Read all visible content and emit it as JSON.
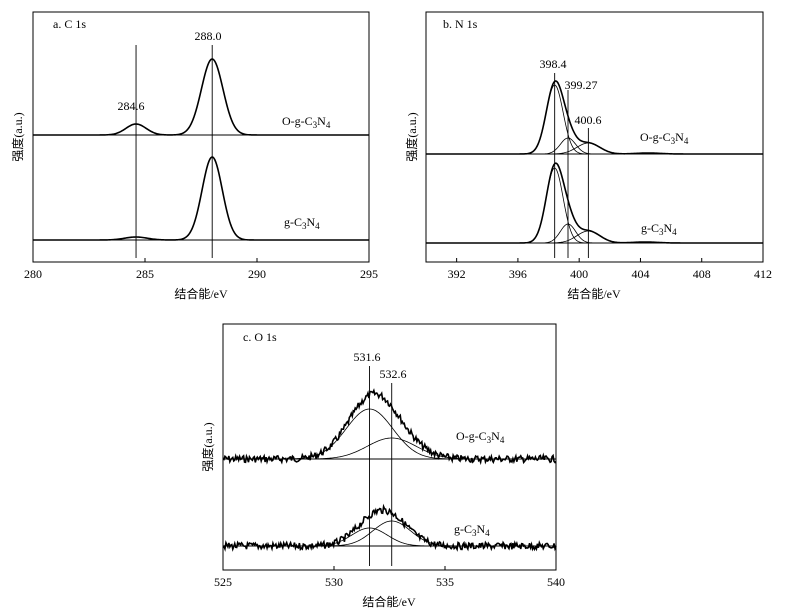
{
  "chart_data": [
    {
      "id": "panel-a",
      "type": "line",
      "title": "a. C 1s",
      "xlabel": "结合能/eV",
      "ylabel": "强度(a.u.)",
      "xlim": [
        280,
        295
      ],
      "xticks": [
        280,
        285,
        290,
        295
      ],
      "peak_markers": [
        {
          "x": 284.6,
          "label": "284.6"
        },
        {
          "x": 288.0,
          "label": "288.0"
        }
      ],
      "series": [
        {
          "name": "O-g-C3N4",
          "label_main": "O-g-C",
          "label_sub1": "3",
          "label_mid": "N",
          "label_sub2": "4",
          "baseline": 0.13,
          "peaks": [
            {
              "center": 284.6,
              "height": 0.11,
              "width": 0.45
            },
            {
              "center": 288.0,
              "height": 0.76,
              "width": 0.48
            }
          ]
        },
        {
          "name": "g-C3N4",
          "label_main": "g-C",
          "label_sub1": "3",
          "label_mid": "N",
          "label_sub2": "4",
          "baseline": 0.0,
          "peaks": [
            {
              "center": 284.6,
              "height": 0.03,
              "width": 0.5
            },
            {
              "center": 288.0,
              "height": 0.83,
              "width": 0.45
            }
          ]
        }
      ]
    },
    {
      "id": "panel-b",
      "type": "line",
      "title": "b. N 1s",
      "xlabel": "结合能/eV",
      "ylabel": "强度(a.u.)",
      "xlim": [
        390,
        412
      ],
      "xticks": [
        392,
        396,
        400,
        404,
        408,
        412
      ],
      "peak_markers": [
        {
          "x": 398.4,
          "label": "398.4"
        },
        {
          "x": 399.27,
          "label": "399.27"
        },
        {
          "x": 400.6,
          "label": "400.6"
        }
      ],
      "series": [
        {
          "name": "O-g-C3N4",
          "label_main": "O-g-C",
          "label_sub1": "3",
          "label_mid": "N",
          "label_sub2": "4",
          "baseline": 0.12,
          "peaks": [
            {
              "center": 398.4,
              "height": 0.69,
              "width": 0.55
            },
            {
              "center": 399.27,
              "height": 0.16,
              "width": 0.5
            },
            {
              "center": 400.6,
              "height": 0.11,
              "width": 0.75
            },
            {
              "center": 404.5,
              "height": 0.01,
              "width": 0.8
            }
          ]
        },
        {
          "name": "g-C3N4",
          "label_main": "g-C",
          "label_sub1": "3",
          "label_mid": "N",
          "label_sub2": "4",
          "baseline": 0.0,
          "peaks": [
            {
              "center": 398.4,
              "height": 0.75,
              "width": 0.55
            },
            {
              "center": 399.27,
              "height": 0.19,
              "width": 0.5
            },
            {
              "center": 400.6,
              "height": 0.12,
              "width": 0.75
            },
            {
              "center": 404.3,
              "height": 0.01,
              "width": 0.8
            }
          ]
        }
      ]
    },
    {
      "id": "panel-c",
      "type": "line",
      "title": "c. O 1s",
      "xlabel": "结合能/eV",
      "ylabel": "强度(a.u.)",
      "xlim": [
        525,
        540
      ],
      "xticks": [
        525,
        530,
        535,
        540
      ],
      "peak_markers": [
        {
          "x": 531.6,
          "label": "531.6"
        },
        {
          "x": 532.6,
          "label": "532.6"
        }
      ],
      "series": [
        {
          "name": "O-g-C3N4",
          "label_main": "O-g-C",
          "label_sub1": "3",
          "label_mid": "N",
          "label_sub2": "4",
          "baseline": 0.28,
          "peaks": [
            {
              "center": 531.6,
              "height": 0.5,
              "width": 1.05
            },
            {
              "center": 532.6,
              "height": 0.21,
              "width": 1.1
            }
          ]
        },
        {
          "name": "g-C3N4",
          "label_main": "g-C",
          "label_sub1": "3",
          "label_mid": "N",
          "label_sub2": "4",
          "baseline": 0.0,
          "peaks": [
            {
              "center": 531.6,
              "height": 0.18,
              "width": 0.8
            },
            {
              "center": 532.6,
              "height": 0.25,
              "width": 0.85
            }
          ]
        }
      ]
    }
  ]
}
